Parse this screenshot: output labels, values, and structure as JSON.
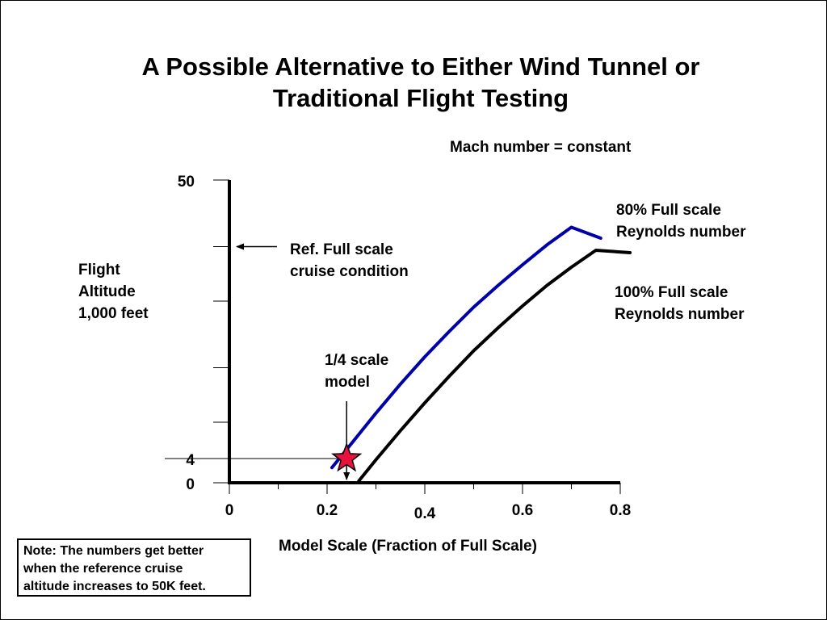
{
  "slide": {
    "title_line1": "A Possible Alternative to Either Wind Tunnel or",
    "title_line2": "Traditional Flight Testing",
    "note_line1": "Note:  The numbers get better",
    "note_line2": "when the reference cruise",
    "note_line3": "altitude increases to 50K feet."
  },
  "chart_data": {
    "type": "line",
    "title": "A Possible Alternative to Either Wind Tunnel or Traditional Flight Testing",
    "subtitle": "Mach number = constant",
    "xlabel": "Model Scale  (Fraction of Full Scale)",
    "ylabel_lines": [
      "Flight",
      "Altitude",
      "1,000 feet"
    ],
    "xlim": [
      0,
      0.8
    ],
    "ylim": [
      0,
      50
    ],
    "x_ticks": [
      {
        "value": 0,
        "label": "0"
      },
      {
        "value": 0.2,
        "label": "0.2"
      },
      {
        "value": 0.4,
        "label": "0.4"
      },
      {
        "value": 0.6,
        "label": "0.6"
      },
      {
        "value": 0.8,
        "label": "0.8"
      }
    ],
    "y_ticks": [
      {
        "value": 0,
        "label": "0"
      },
      {
        "value": 4,
        "label": "4"
      },
      {
        "value": 50,
        "label": "50"
      }
    ],
    "y_minor_ticks": [
      10,
      19,
      30,
      39
    ],
    "series": [
      {
        "name_lines": [
          "80% Full scale",
          "Reynolds number"
        ],
        "color": "#0000aa",
        "x": [
          0.21,
          0.25,
          0.3,
          0.35,
          0.4,
          0.45,
          0.5,
          0.55,
          0.6,
          0.65,
          0.7,
          0.76
        ],
        "y": [
          2.5,
          6.5,
          11.5,
          16.3,
          20.8,
          25.0,
          29.0,
          32.6,
          36.0,
          39.3,
          42.2,
          40.4
        ]
      },
      {
        "name_lines": [
          "100% Full scale",
          "Reynolds number"
        ],
        "color": "#000000",
        "x": [
          0.265,
          0.3,
          0.35,
          0.4,
          0.45,
          0.5,
          0.55,
          0.6,
          0.65,
          0.7,
          0.75,
          0.82
        ],
        "y": [
          0.3,
          3.8,
          8.6,
          13.2,
          17.6,
          21.8,
          25.6,
          29.2,
          32.6,
          35.6,
          38.4,
          38.0
        ]
      }
    ],
    "annotations": {
      "mach": "Mach number = constant",
      "ref_lines": [
        "Ref. Full scale",
        "cruise condition"
      ],
      "ref_y": 39,
      "model_lines": [
        "1/4 scale",
        "model"
      ],
      "star": {
        "x": 0.24,
        "y": 4,
        "color": "#e8103c"
      }
    }
  }
}
